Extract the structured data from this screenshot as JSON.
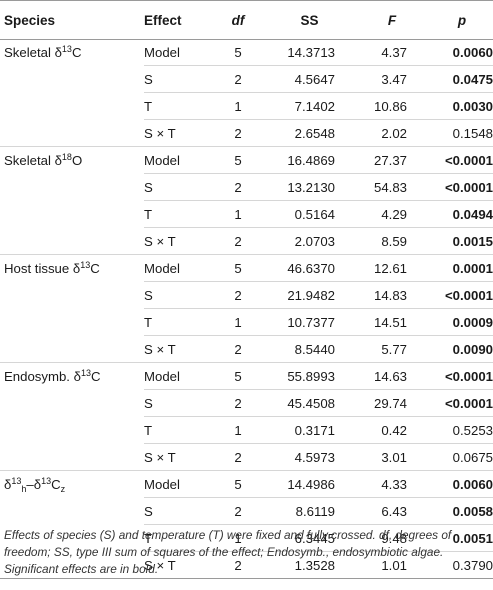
{
  "headers": {
    "species": "Species",
    "effect": "Effect",
    "df": "df",
    "ss": "SS",
    "f": "F",
    "p": "p"
  },
  "groups": [
    {
      "species": {
        "pre": "Skeletal δ",
        "sup": "13",
        "post": "C"
      },
      "rows": [
        {
          "effect": "Model",
          "df": "5",
          "ss": "14.3713",
          "f": "4.37",
          "p": "0.0060",
          "significant": true
        },
        {
          "effect": "S",
          "df": "2",
          "ss": "4.5647",
          "f": "3.47",
          "p": "0.0475",
          "significant": true
        },
        {
          "effect": "T",
          "df": "1",
          "ss": "7.1402",
          "f": "10.86",
          "p": "0.0030",
          "significant": true
        },
        {
          "effect": "S × T",
          "df": "2",
          "ss": "2.6548",
          "f": "2.02",
          "p": "0.1548",
          "significant": false
        }
      ]
    },
    {
      "species": {
        "pre": "Skeletal δ",
        "sup": "18",
        "post": "O"
      },
      "rows": [
        {
          "effect": "Model",
          "df": "5",
          "ss": "16.4869",
          "f": "27.37",
          "p": "<0.0001",
          "significant": true
        },
        {
          "effect": "S",
          "df": "2",
          "ss": "13.2130",
          "f": "54.83",
          "p": "<0.0001",
          "significant": true
        },
        {
          "effect": "T",
          "df": "1",
          "ss": "0.5164",
          "f": "4.29",
          "p": "0.0494",
          "significant": true
        },
        {
          "effect": "S × T",
          "df": "2",
          "ss": "2.0703",
          "f": "8.59",
          "p": "0.0015",
          "significant": true
        }
      ]
    },
    {
      "species": {
        "pre": "Host tissue δ",
        "sup": "13",
        "post": "C"
      },
      "rows": [
        {
          "effect": "Model",
          "df": "5",
          "ss": "46.6370",
          "f": "12.61",
          "p": "0.0001",
          "significant": true
        },
        {
          "effect": "S",
          "df": "2",
          "ss": "21.9482",
          "f": "14.83",
          "p": "<0.0001",
          "significant": true
        },
        {
          "effect": "T",
          "df": "1",
          "ss": "10.7377",
          "f": "14.51",
          "p": "0.0009",
          "significant": true
        },
        {
          "effect": "S × T",
          "df": "2",
          "ss": "8.5440",
          "f": "5.77",
          "p": "0.0090",
          "significant": true
        }
      ]
    },
    {
      "species": {
        "pre": "Endosymb. δ",
        "sup": "13",
        "post": "C"
      },
      "rows": [
        {
          "effect": "Model",
          "df": "5",
          "ss": "55.8993",
          "f": "14.63",
          "p": "<0.0001",
          "significant": true
        },
        {
          "effect": "S",
          "df": "2",
          "ss": "45.4508",
          "f": "29.74",
          "p": "<0.0001",
          "significant": true
        },
        {
          "effect": "T",
          "df": "1",
          "ss": "0.3171",
          "f": "0.42",
          "p": "0.5253",
          "significant": false
        },
        {
          "effect": "S × T",
          "df": "2",
          "ss": "4.5973",
          "f": "3.01",
          "p": "0.0675",
          "significant": false
        }
      ]
    },
    {
      "species": {
        "pre": "δ",
        "sup": "13",
        "sub1": "h",
        "mid": "–δ",
        "sup2": "13",
        "post": "C",
        "sub2": "z"
      },
      "rows": [
        {
          "effect": "Model",
          "df": "5",
          "ss": "14.4986",
          "f": "4.33",
          "p": "0.0060",
          "significant": true
        },
        {
          "effect": "S",
          "df": "2",
          "ss": "8.6119",
          "f": "6.43",
          "p": "0.0058",
          "significant": true
        },
        {
          "effect": "T",
          "df": "1",
          "ss": "6.3445",
          "f": "9.48",
          "p": "0.0051",
          "significant": true
        },
        {
          "effect": "S × T",
          "df": "2",
          "ss": "1.3528",
          "f": "1.01",
          "p": "0.3790",
          "significant": false
        }
      ]
    }
  ],
  "footnote": "Effects of species (S) and temperature (T) were fixed and fully crossed. df, degrees of freedom; SS, type III sum of squares of the effect; Endosymb., endosymbiotic algae. Significant effects are in bold."
}
